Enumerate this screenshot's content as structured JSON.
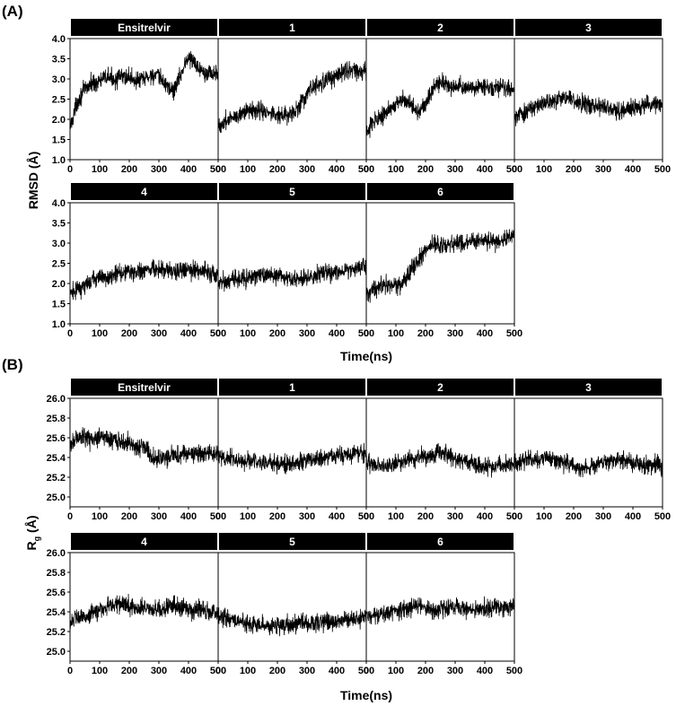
{
  "figure": {
    "panel_a_label": "(A)",
    "panel_b_label": "(B)"
  },
  "chart_data": [
    {
      "type": "line",
      "panel": "(A)",
      "ylabel": "RMSD (Å)",
      "xlabel": "Time(ns)",
      "xlim": [
        0,
        500
      ],
      "ylim": [
        1.0,
        4.0
      ],
      "xticks": [
        "0",
        "100",
        "200",
        "300",
        "400",
        "500"
      ],
      "yticks": [
        "1.0",
        "1.5",
        "2.0",
        "2.5",
        "3.0",
        "3.5",
        "4.0"
      ],
      "series": [
        {
          "name": "Ensitrelvir",
          "x": [
            0,
            25,
            50,
            75,
            100,
            125,
            150,
            175,
            200,
            225,
            250,
            275,
            300,
            325,
            350,
            375,
            400,
            425,
            450,
            475,
            500
          ],
          "y": [
            1.8,
            2.45,
            2.75,
            2.9,
            2.95,
            3.05,
            3.0,
            3.05,
            3.05,
            2.95,
            3.0,
            3.1,
            3.05,
            2.85,
            2.7,
            3.15,
            3.55,
            3.35,
            3.2,
            3.15,
            3.1
          ]
        },
        {
          "name": "1",
          "x": [
            0,
            25,
            50,
            75,
            100,
            125,
            150,
            175,
            200,
            225,
            250,
            275,
            300,
            325,
            350,
            375,
            400,
            425,
            450,
            475,
            500
          ],
          "y": [
            1.8,
            1.95,
            2.05,
            2.15,
            2.25,
            2.25,
            2.2,
            2.15,
            2.1,
            2.1,
            2.1,
            2.35,
            2.6,
            2.8,
            2.9,
            3.0,
            3.1,
            3.2,
            3.25,
            3.2,
            3.15
          ]
        },
        {
          "name": "2",
          "x": [
            0,
            25,
            50,
            75,
            100,
            125,
            150,
            175,
            200,
            225,
            250,
            275,
            300,
            325,
            350,
            375,
            400,
            425,
            450,
            475,
            500
          ],
          "y": [
            1.75,
            1.95,
            2.1,
            2.2,
            2.35,
            2.5,
            2.35,
            2.2,
            2.4,
            2.75,
            2.95,
            2.85,
            2.8,
            2.8,
            2.8,
            2.75,
            2.8,
            2.75,
            2.8,
            2.75,
            2.75
          ]
        },
        {
          "name": "3",
          "x": [
            0,
            25,
            50,
            75,
            100,
            125,
            150,
            175,
            200,
            225,
            250,
            275,
            300,
            325,
            350,
            375,
            400,
            425,
            450,
            475,
            500
          ],
          "y": [
            2.05,
            2.15,
            2.25,
            2.35,
            2.4,
            2.45,
            2.5,
            2.5,
            2.45,
            2.4,
            2.35,
            2.35,
            2.3,
            2.25,
            2.2,
            2.25,
            2.3,
            2.3,
            2.35,
            2.4,
            2.4
          ]
        },
        {
          "name": "4",
          "x": [
            0,
            25,
            50,
            75,
            100,
            125,
            150,
            175,
            200,
            225,
            250,
            275,
            300,
            325,
            350,
            375,
            400,
            425,
            450,
            475,
            500
          ],
          "y": [
            1.75,
            1.85,
            1.95,
            2.05,
            2.15,
            2.15,
            2.2,
            2.25,
            2.3,
            2.3,
            2.35,
            2.35,
            2.35,
            2.3,
            2.35,
            2.3,
            2.35,
            2.3,
            2.3,
            2.25,
            2.25
          ]
        },
        {
          "name": "5",
          "x": [
            0,
            25,
            50,
            75,
            100,
            125,
            150,
            175,
            200,
            225,
            250,
            275,
            300,
            325,
            350,
            375,
            400,
            425,
            450,
            475,
            500
          ],
          "y": [
            2.05,
            2.05,
            2.1,
            2.1,
            2.15,
            2.15,
            2.2,
            2.2,
            2.2,
            2.15,
            2.1,
            2.1,
            2.15,
            2.2,
            2.25,
            2.25,
            2.3,
            2.3,
            2.35,
            2.4,
            2.45
          ]
        },
        {
          "name": "6",
          "x": [
            0,
            25,
            50,
            75,
            100,
            125,
            150,
            175,
            200,
            225,
            250,
            275,
            300,
            325,
            350,
            375,
            400,
            425,
            450,
            475,
            500
          ],
          "y": [
            1.75,
            1.85,
            1.95,
            2.0,
            1.95,
            2.0,
            2.3,
            2.55,
            2.9,
            2.95,
            2.95,
            2.95,
            3.0,
            3.0,
            3.0,
            3.05,
            3.05,
            3.05,
            3.05,
            3.1,
            3.15
          ]
        }
      ]
    },
    {
      "type": "line",
      "panel": "(B)",
      "ylabel": "Rg (Å)",
      "ylabel_main": "R",
      "ylabel_sub": "g",
      "ylabel_rest": " (Å)",
      "xlabel": "Time(ns)",
      "xlim": [
        0,
        500
      ],
      "ylim": [
        24.9,
        26.0
      ],
      "xticks": [
        "0",
        "100",
        "200",
        "300",
        "400",
        "500"
      ],
      "yticks": [
        "25.0",
        "25.2",
        "25.4",
        "25.6",
        "25.8",
        "26.0"
      ],
      "series": [
        {
          "name": "Ensitrelvir",
          "x": [
            0,
            25,
            50,
            75,
            100,
            125,
            150,
            175,
            200,
            225,
            250,
            275,
            300,
            325,
            350,
            375,
            400,
            425,
            450,
            475,
            500
          ],
          "y": [
            25.55,
            25.6,
            25.6,
            25.58,
            25.62,
            25.6,
            25.58,
            25.55,
            25.55,
            25.52,
            25.52,
            25.4,
            25.38,
            25.4,
            25.42,
            25.42,
            25.45,
            25.45,
            25.42,
            25.45,
            25.45
          ]
        },
        {
          "name": "1",
          "x": [
            0,
            25,
            50,
            75,
            100,
            125,
            150,
            175,
            200,
            225,
            250,
            275,
            300,
            325,
            350,
            375,
            400,
            425,
            450,
            475,
            500
          ],
          "y": [
            25.4,
            25.38,
            25.38,
            25.36,
            25.38,
            25.36,
            25.35,
            25.34,
            25.34,
            25.33,
            25.34,
            25.36,
            25.38,
            25.38,
            25.4,
            25.4,
            25.42,
            25.42,
            25.44,
            25.44,
            25.45
          ]
        },
        {
          "name": "2",
          "x": [
            0,
            25,
            50,
            75,
            100,
            125,
            150,
            175,
            200,
            225,
            250,
            275,
            300,
            325,
            350,
            375,
            400,
            425,
            450,
            475,
            500
          ],
          "y": [
            25.35,
            25.33,
            25.3,
            25.32,
            25.34,
            25.36,
            25.38,
            25.4,
            25.4,
            25.42,
            25.44,
            25.42,
            25.38,
            25.36,
            25.34,
            25.32,
            25.3,
            25.3,
            25.32,
            25.33,
            25.34
          ]
        },
        {
          "name": "3",
          "x": [
            0,
            25,
            50,
            75,
            100,
            125,
            150,
            175,
            200,
            225,
            250,
            275,
            300,
            325,
            350,
            375,
            400,
            425,
            450,
            475,
            500
          ],
          "y": [
            25.35,
            25.36,
            25.38,
            25.38,
            25.4,
            25.38,
            25.36,
            25.34,
            25.32,
            25.28,
            25.3,
            25.34,
            25.36,
            25.36,
            25.38,
            25.36,
            25.35,
            25.33,
            25.32,
            25.32,
            25.31
          ]
        },
        {
          "name": "4",
          "x": [
            0,
            25,
            50,
            75,
            100,
            125,
            150,
            175,
            200,
            225,
            250,
            275,
            300,
            325,
            350,
            375,
            400,
            425,
            450,
            475,
            500
          ],
          "y": [
            25.3,
            25.33,
            25.35,
            25.38,
            25.42,
            25.45,
            25.48,
            25.48,
            25.46,
            25.44,
            25.44,
            25.43,
            25.42,
            25.44,
            25.46,
            25.45,
            25.44,
            25.42,
            25.42,
            25.4,
            25.4
          ]
        },
        {
          "name": "5",
          "x": [
            0,
            25,
            50,
            75,
            100,
            125,
            150,
            175,
            200,
            225,
            250,
            275,
            300,
            325,
            350,
            375,
            400,
            425,
            450,
            475,
            500
          ],
          "y": [
            25.35,
            25.34,
            25.32,
            25.3,
            25.28,
            25.27,
            25.26,
            25.26,
            25.25,
            25.26,
            25.27,
            25.28,
            25.28,
            25.29,
            25.3,
            25.3,
            25.31,
            25.31,
            25.32,
            25.33,
            25.33
          ]
        },
        {
          "name": "6",
          "x": [
            0,
            25,
            50,
            75,
            100,
            125,
            150,
            175,
            200,
            225,
            250,
            275,
            300,
            325,
            350,
            375,
            400,
            425,
            450,
            475,
            500
          ],
          "y": [
            25.35,
            25.36,
            25.38,
            25.38,
            25.4,
            25.42,
            25.44,
            25.46,
            25.44,
            25.42,
            25.42,
            25.44,
            25.46,
            25.44,
            25.42,
            25.42,
            25.44,
            25.45,
            25.44,
            25.45,
            25.46
          ]
        }
      ]
    }
  ]
}
